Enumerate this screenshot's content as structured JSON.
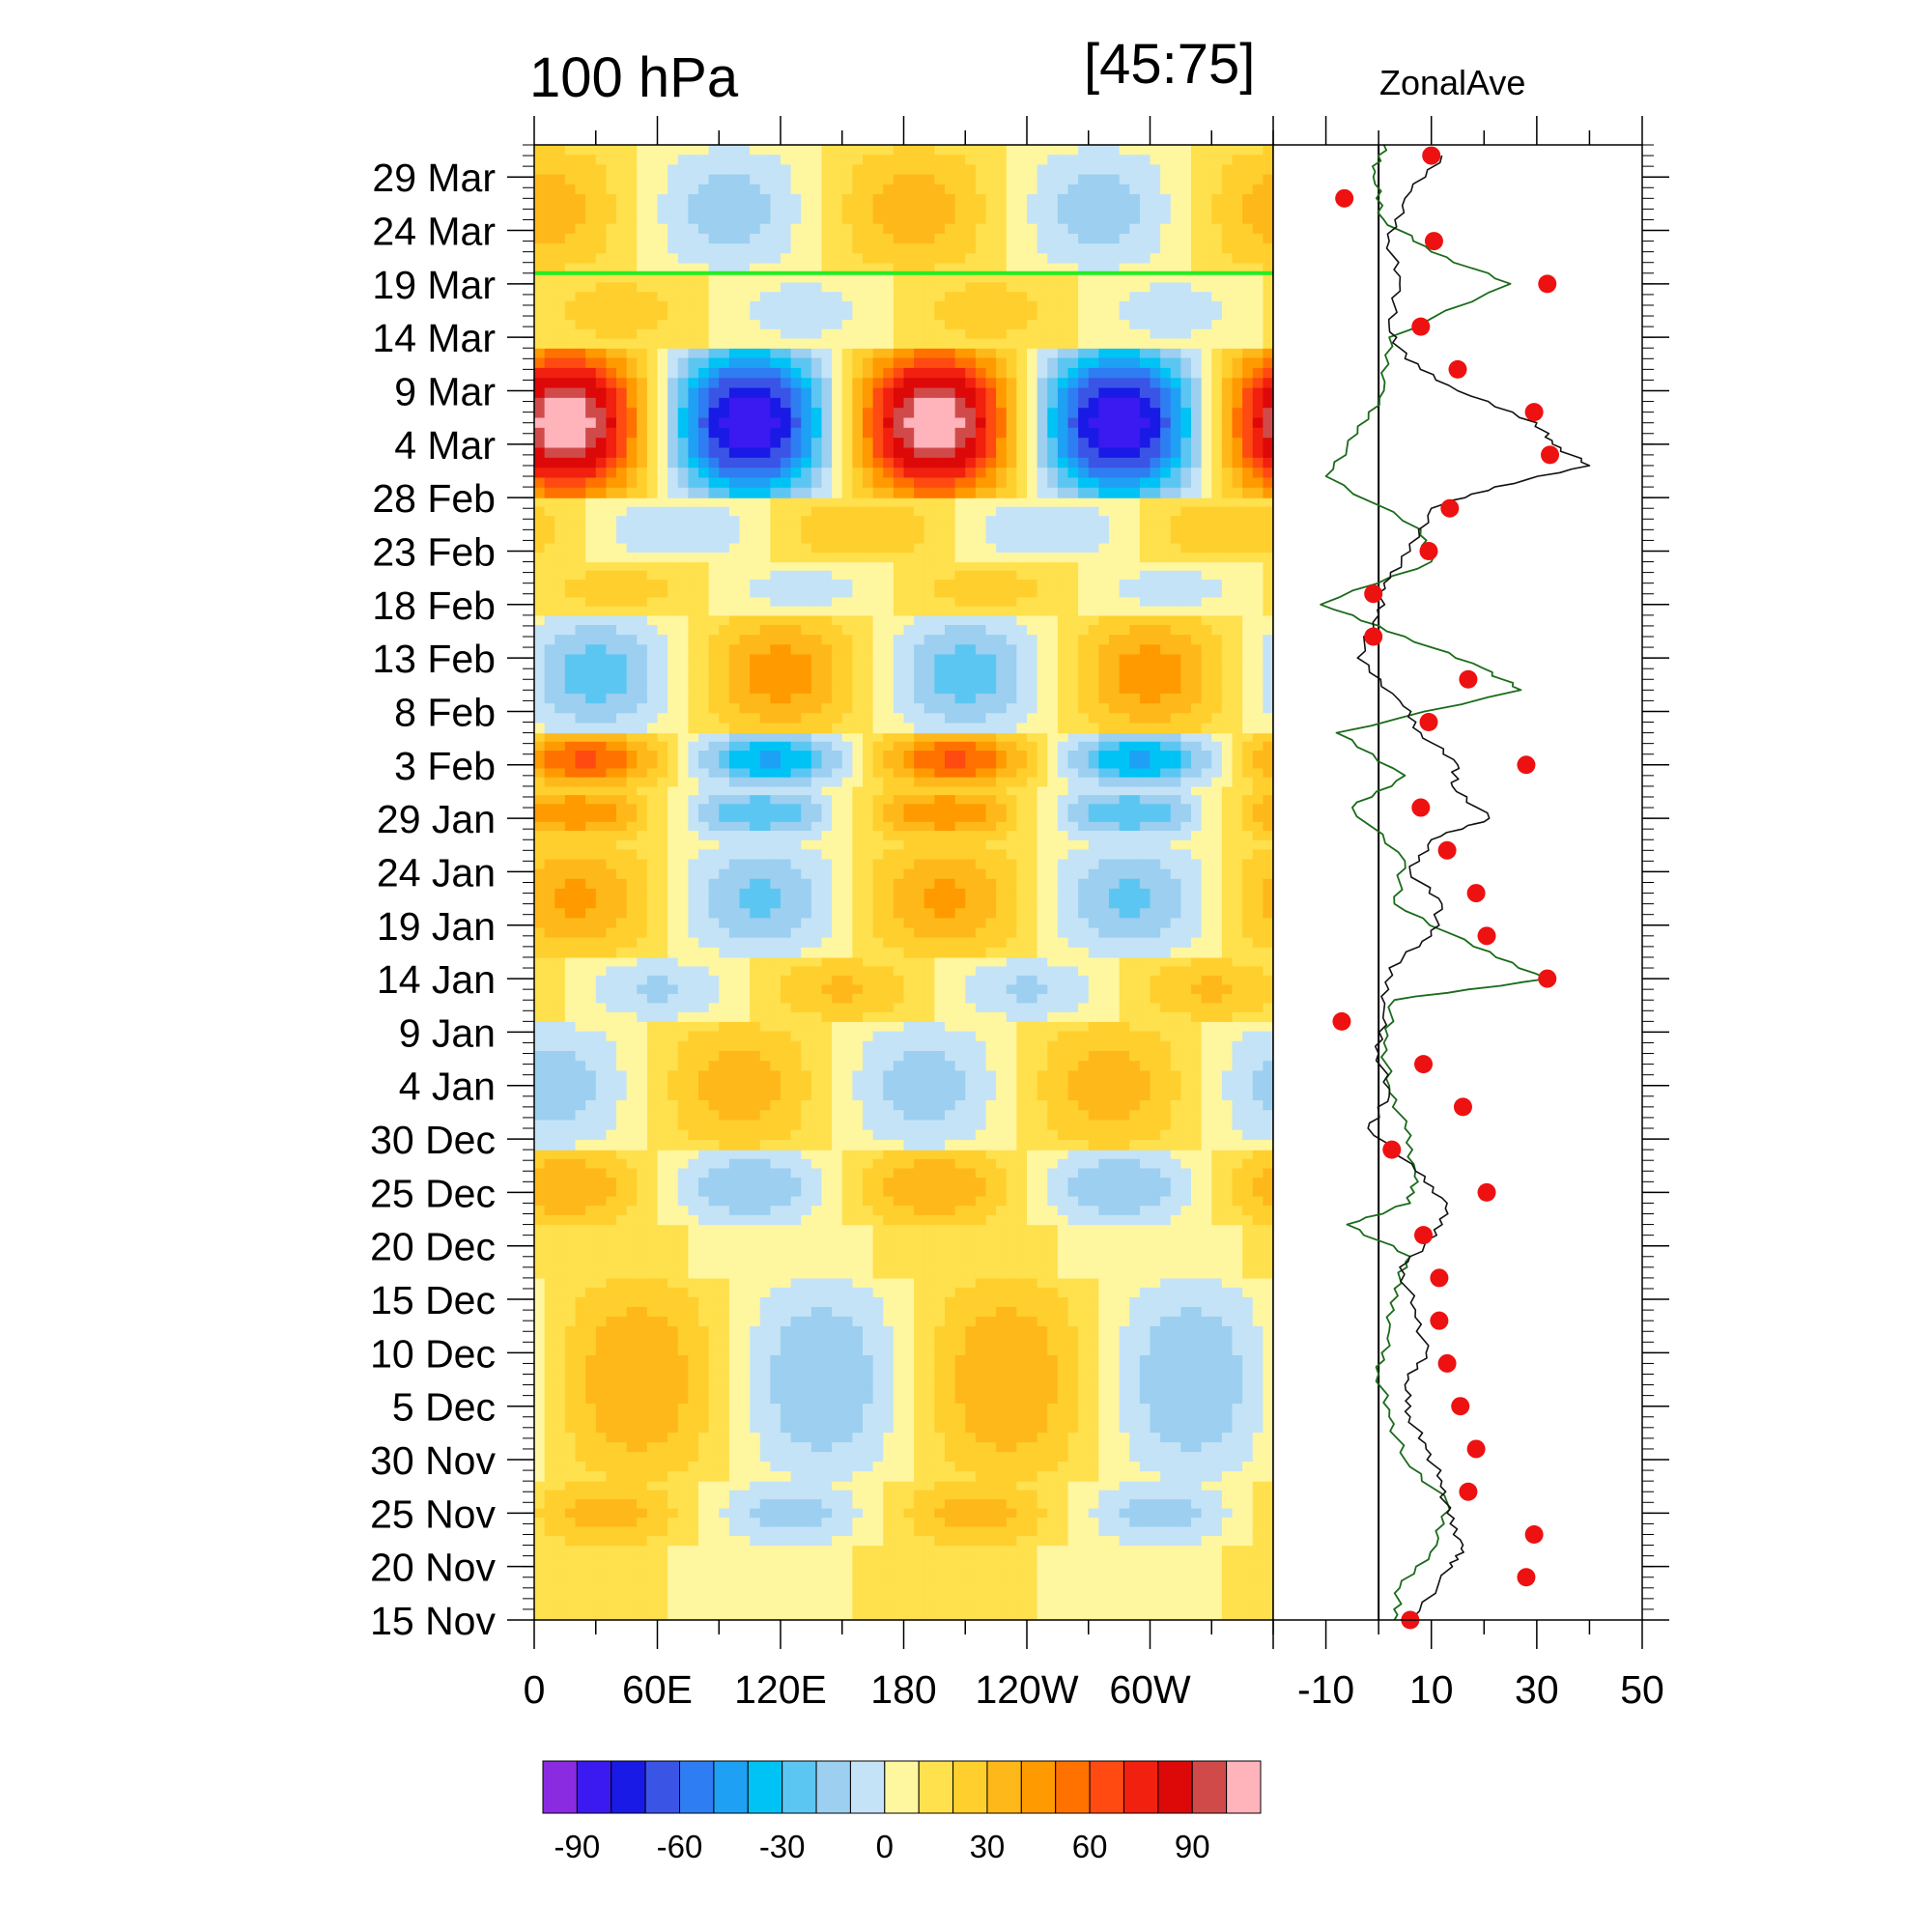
{
  "chart_data": [
    {
      "type": "heatmap",
      "title_left": "100 hPa",
      "title_center": "[45:75]",
      "x_tick_labels": [
        "0",
        "60E",
        "120E",
        "180",
        "120W",
        "60W"
      ],
      "x_tick_values_deg": [
        0,
        60,
        120,
        180,
        240,
        300
      ],
      "xlim": [
        0,
        360
      ],
      "y_tick_labels": [
        "29 Mar",
        "24 Mar",
        "19 Mar",
        "14 Mar",
        "9 Mar",
        "4 Mar",
        "28 Feb",
        "23 Feb",
        "18 Feb",
        "13 Feb",
        "8 Feb",
        "3 Feb",
        "29 Jan",
        "24 Jan",
        "19 Jan",
        "14 Jan",
        "9 Jan",
        "4 Jan",
        "30 Dec",
        "25 Dec",
        "20 Dec",
        "15 Dec",
        "10 Dec",
        "5 Dec",
        "30 Nov",
        "25 Nov",
        "20 Nov",
        "15 Nov"
      ],
      "date_range": [
        "15 Nov",
        "1 Apr"
      ],
      "marker_line_date": "20 Mar",
      "marker_line_color": "#22ee22",
      "colorbar": {
        "levels": [
          -100,
          -90,
          -80,
          -70,
          -60,
          -50,
          -40,
          -30,
          -20,
          -10,
          0,
          10,
          20,
          30,
          40,
          50,
          60,
          70,
          80,
          90,
          100
        ],
        "tick_labels": [
          "-90",
          "-60",
          "-30",
          "0",
          "30",
          "60",
          "90"
        ],
        "tick_values": [
          -90,
          -60,
          -30,
          0,
          30,
          60,
          90
        ],
        "colors": [
          "#8a2be2",
          "#3a1af0",
          "#1a1ae6",
          "#3a55e6",
          "#2f7df2",
          "#1ea0f5",
          "#00c3f5",
          "#5cc6f2",
          "#9ccff0",
          "#c4e3f7",
          "#fff6a0",
          "#ffe04d",
          "#ffcf2e",
          "#ffb81a",
          "#ff9a00",
          "#ff7200",
          "#ff4a12",
          "#f2200e",
          "#dd0909",
          "#d14a4a",
          "#ffb3bb"
        ]
      },
      "wave_bands": [
        {
          "from": "15 Nov",
          "to": "22 Nov",
          "amp": 10,
          "phase": 20
        },
        {
          "from": "22 Nov",
          "to": "28 Nov",
          "amp": 25,
          "phase": 35
        },
        {
          "from": "28 Nov",
          "to": "17 Dec",
          "amp": 30,
          "phase": 50
        },
        {
          "from": "17 Dec",
          "to": "22 Dec",
          "amp": 8,
          "phase": 30
        },
        {
          "from": "22 Dec",
          "to": "29 Dec",
          "amp": 30,
          "phase": 15
        },
        {
          "from": "29 Dec",
          "to": "10 Jan",
          "amp": -25,
          "phase": 10
        },
        {
          "from": "10 Jan",
          "to": "16 Jan",
          "amp": -22,
          "phase": 60
        },
        {
          "from": "16 Jan",
          "to": "27 Jan",
          "amp": 32,
          "phase": 20
        },
        {
          "from": "27 Jan",
          "to": "1 Feb",
          "amp": 38,
          "phase": 20
        },
        {
          "from": "1 Feb",
          "to": "6 Feb",
          "amp": 52,
          "phase": 25
        },
        {
          "from": "6 Feb",
          "to": "17 Feb",
          "amp": -35,
          "phase": 30
        },
        {
          "from": "17 Feb",
          "to": "22 Feb",
          "amp": 15,
          "phase": 40
        },
        {
          "from": "22 Feb",
          "to": "28 Feb",
          "amp": -20,
          "phase": 70
        },
        {
          "from": "28 Feb",
          "to": "13 Mar",
          "amp": 100,
          "phase": 15
        },
        {
          "from": "13 Mar",
          "to": "20 Mar",
          "amp": 15,
          "phase": 40
        },
        {
          "from": "20 Mar",
          "to": "1 Apr",
          "amp": -25,
          "phase": 95
        }
      ]
    },
    {
      "type": "scatter",
      "title": "ZonalAve",
      "x_tick_labels": [
        "-10",
        "10",
        "30",
        "50"
      ],
      "x_tick_values": [
        -10,
        10,
        30,
        50
      ],
      "xlim": [
        -20,
        50
      ],
      "vertical_line_x": 0,
      "dots": {
        "color": "#ee1111",
        "points": [
          {
            "x": 6,
            "date": "15 Nov"
          },
          {
            "x": 28,
            "date": "19 Nov"
          },
          {
            "x": 29.5,
            "date": "23 Nov"
          },
          {
            "x": 17,
            "date": "27 Nov"
          },
          {
            "x": 18.5,
            "date": "1 Dec"
          },
          {
            "x": 15.5,
            "date": "5 Dec"
          },
          {
            "x": 13,
            "date": "9 Dec"
          },
          {
            "x": 11.5,
            "date": "13 Dec"
          },
          {
            "x": 11.5,
            "date": "17 Dec"
          },
          {
            "x": 8.5,
            "date": "21 Dec"
          },
          {
            "x": 20.5,
            "date": "25 Dec"
          },
          {
            "x": 2.5,
            "date": "29 Dec"
          },
          {
            "x": 16,
            "date": "2 Jan"
          },
          {
            "x": 8.5,
            "date": "6 Jan"
          },
          {
            "x": -7,
            "date": "10 Jan"
          },
          {
            "x": 32,
            "date": "14 Jan"
          },
          {
            "x": 20.5,
            "date": "18 Jan"
          },
          {
            "x": 18.5,
            "date": "22 Jan"
          },
          {
            "x": 13,
            "date": "26 Jan"
          },
          {
            "x": 8,
            "date": "30 Jan"
          },
          {
            "x": 28,
            "date": "3 Feb"
          },
          {
            "x": 9.5,
            "date": "7 Feb"
          },
          {
            "x": 17,
            "date": "11 Feb"
          },
          {
            "x": -1,
            "date": "15 Feb"
          },
          {
            "x": -1,
            "date": "19 Feb"
          },
          {
            "x": 9.5,
            "date": "23 Feb"
          },
          {
            "x": 13.5,
            "date": "27 Feb"
          },
          {
            "x": 32.5,
            "date": "3 Mar"
          },
          {
            "x": 29.5,
            "date": "7 Mar"
          },
          {
            "x": 15,
            "date": "11 Mar"
          },
          {
            "x": 8,
            "date": "15 Mar"
          },
          {
            "x": 32,
            "date": "19 Mar"
          },
          {
            "x": 10.5,
            "date": "23 Mar"
          },
          {
            "x": -6.5,
            "date": "27 Mar"
          },
          {
            "x": 10,
            "date": "31 Mar"
          }
        ]
      },
      "black_line": {
        "color": "#111111",
        "points": [
          {
            "x": 6,
            "date": "15 Nov"
          },
          {
            "x": 14,
            "date": "20 Nov"
          },
          {
            "x": 16,
            "date": "22 Nov"
          },
          {
            "x": 13,
            "date": "25 Nov"
          },
          {
            "x": 12,
            "date": "28 Nov"
          },
          {
            "x": 9,
            "date": "1 Dec"
          },
          {
            "x": 6,
            "date": "4 Dec"
          },
          {
            "x": 5,
            "date": "7 Dec"
          },
          {
            "x": 9,
            "date": "10 Dec"
          },
          {
            "x": 7,
            "date": "14 Dec"
          },
          {
            "x": 4,
            "date": "18 Dec"
          },
          {
            "x": 11,
            "date": "21 Dec"
          },
          {
            "x": 13,
            "date": "24 Dec"
          },
          {
            "x": 7,
            "date": "27 Dec"
          },
          {
            "x": -2,
            "date": "31 Dec"
          },
          {
            "x": 2,
            "date": "3 Jan"
          },
          {
            "x": 0,
            "date": "7 Jan"
          },
          {
            "x": 1,
            "date": "11 Jan"
          },
          {
            "x": 2,
            "date": "15 Jan"
          },
          {
            "x": 10,
            "date": "18 Jan"
          },
          {
            "x": 12,
            "date": "21 Jan"
          },
          {
            "x": 6,
            "date": "24 Jan"
          },
          {
            "x": 10,
            "date": "27 Jan"
          },
          {
            "x": 21,
            "date": "29 Jan"
          },
          {
            "x": 14,
            "date": "1 Feb"
          },
          {
            "x": 15,
            "date": "3 Feb"
          },
          {
            "x": 8,
            "date": "6 Feb"
          },
          {
            "x": 4,
            "date": "9 Feb"
          },
          {
            "x": -4,
            "date": "13 Feb"
          },
          {
            "x": 0,
            "date": "17 Feb"
          },
          {
            "x": 1,
            "date": "20 Feb"
          },
          {
            "x": 6,
            "date": "23 Feb"
          },
          {
            "x": 10,
            "date": "27 Feb"
          },
          {
            "x": 22,
            "date": "29 Feb"
          },
          {
            "x": 40,
            "date": "2 Mar"
          },
          {
            "x": 33,
            "date": "4 Mar"
          },
          {
            "x": 30,
            "date": "6 Mar"
          },
          {
            "x": 15,
            "date": "9 Mar"
          },
          {
            "x": 5,
            "date": "12 Mar"
          },
          {
            "x": 2,
            "date": "15 Mar"
          },
          {
            "x": 4,
            "date": "19 Mar"
          },
          {
            "x": 2,
            "date": "23 Mar"
          },
          {
            "x": 5,
            "date": "27 Mar"
          },
          {
            "x": 12,
            "date": "31 Mar"
          }
        ]
      },
      "green_line": {
        "color": "#1a6b1a",
        "points": [
          {
            "x": 3,
            "date": "15 Nov"
          },
          {
            "x": 4,
            "date": "18 Nov"
          },
          {
            "x": 11,
            "date": "22 Nov"
          },
          {
            "x": 13,
            "date": "26 Nov"
          },
          {
            "x": 5,
            "date": "30 Nov"
          },
          {
            "x": 2,
            "date": "4 Dec"
          },
          {
            "x": 0,
            "date": "8 Dec"
          },
          {
            "x": 2,
            "date": "12 Dec"
          },
          {
            "x": 3,
            "date": "16 Dec"
          },
          {
            "x": 6,
            "date": "19 Dec"
          },
          {
            "x": -6,
            "date": "22 Dec"
          },
          {
            "x": 6,
            "date": "24 Dec"
          },
          {
            "x": 7,
            "date": "27 Dec"
          },
          {
            "x": 5,
            "date": "31 Dec"
          },
          {
            "x": 2,
            "date": "4 Jan"
          },
          {
            "x": 1,
            "date": "8 Jan"
          },
          {
            "x": 3,
            "date": "12 Jan"
          },
          {
            "x": 32,
            "date": "14 Jan"
          },
          {
            "x": 18,
            "date": "17 Jan"
          },
          {
            "x": 3,
            "date": "21 Jan"
          },
          {
            "x": 5,
            "date": "25 Jan"
          },
          {
            "x": -5,
            "date": "30 Jan"
          },
          {
            "x": 5,
            "date": "2 Feb"
          },
          {
            "x": -8,
            "date": "6 Feb"
          },
          {
            "x": 27,
            "date": "10 Feb"
          },
          {
            "x": 20,
            "date": "12 Feb"
          },
          {
            "x": 5,
            "date": "15 Feb"
          },
          {
            "x": -11,
            "date": "18 Feb"
          },
          {
            "x": 10,
            "date": "22 Feb"
          },
          {
            "x": 8,
            "date": "25 Feb"
          },
          {
            "x": -10,
            "date": "1 Mar"
          },
          {
            "x": -4,
            "date": "5 Mar"
          },
          {
            "x": 1,
            "date": "9 Mar"
          },
          {
            "x": 2,
            "date": "14 Mar"
          },
          {
            "x": 25,
            "date": "19 Mar"
          },
          {
            "x": 10,
            "date": "22 Mar"
          },
          {
            "x": 1,
            "date": "25 Mar"
          },
          {
            "x": -1,
            "date": "29 Mar"
          },
          {
            "x": 1,
            "date": "1 Apr"
          }
        ]
      }
    }
  ]
}
